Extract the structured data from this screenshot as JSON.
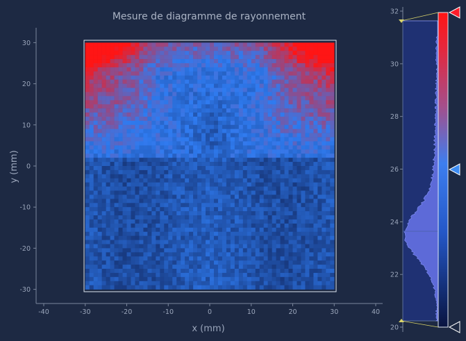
{
  "chart_data": {
    "type": "heatmap",
    "title": "Mesure de diagramme de rayonnement",
    "xlabel": "x (mm)",
    "ylabel": "y (mm)",
    "xlim": [
      -42,
      42
    ],
    "ylim": [
      -33,
      33
    ],
    "x_ticks": [
      "-40",
      "-30",
      "-20",
      "-10",
      "0",
      "10",
      "20",
      "30",
      "40"
    ],
    "y_ticks": [
      "30",
      "20",
      "10",
      "0",
      "-10",
      "-20",
      "-30"
    ],
    "image_extent": {
      "x": [
        -30,
        30
      ],
      "y": [
        -30,
        30
      ]
    },
    "colorbar": {
      "range": [
        20,
        32
      ],
      "ticks": [
        "32",
        "30",
        "28",
        "26",
        "24",
        "22",
        "20"
      ],
      "levels": {
        "max": 31.7,
        "mid": 26,
        "min": 20.2
      }
    },
    "grid": false
  },
  "colors": {
    "background": "#1d2943",
    "low": "#0d1a4a",
    "mid": "#2f7bf0",
    "high": "#ff1515",
    "axis": "#7c879c"
  },
  "icons": {
    "top_handle": "red-triangle-icon",
    "mid_handle": "blue-triangle-icon",
    "bottom_handle": "white-triangle-icon"
  }
}
